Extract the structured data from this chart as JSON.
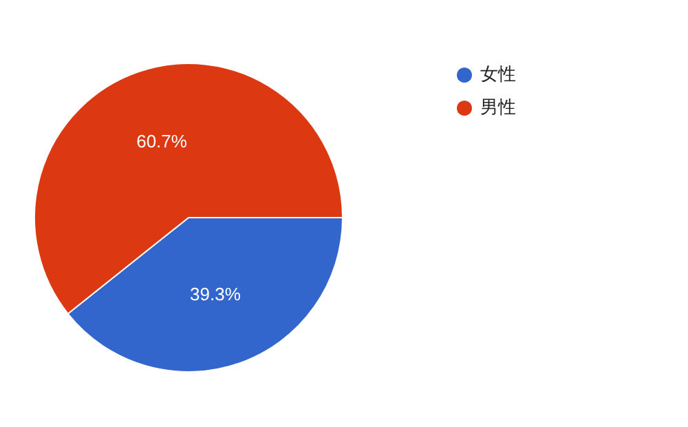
{
  "chart_data": {
    "type": "pie",
    "categories": [
      "女性",
      "男性"
    ],
    "values": [
      39.3,
      60.7
    ],
    "colors": [
      "#3366cc",
      "#dc3912"
    ],
    "value_labels": [
      "39.3%",
      "60.7%"
    ],
    "legend": "top right"
  }
}
